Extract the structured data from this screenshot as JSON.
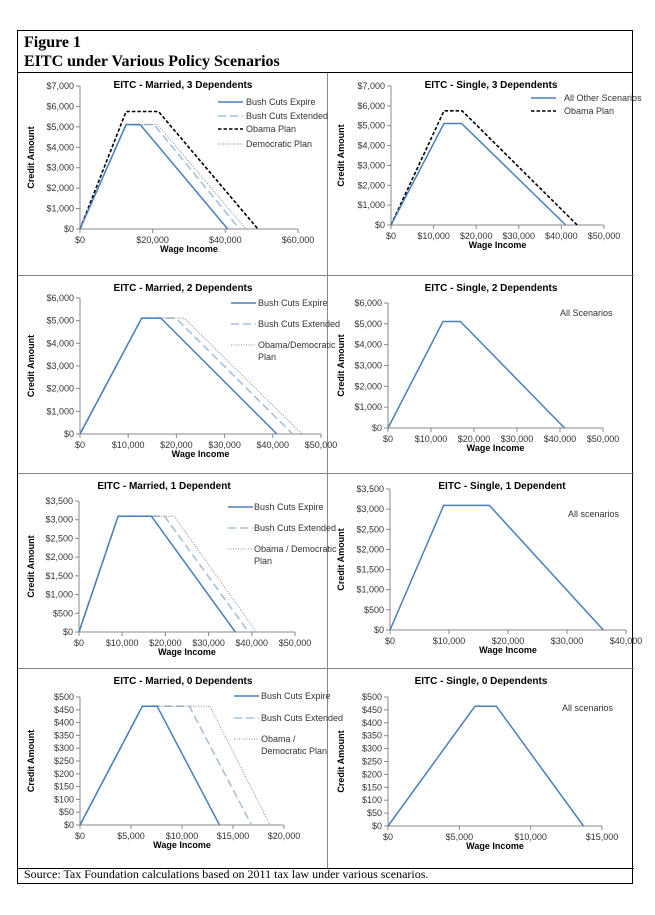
{
  "header": {
    "figure_label": "Figure 1",
    "title": "EITC under Various Policy Scenarios"
  },
  "source": "Source: Tax Foundation calculations based on 2011 tax law under various scenarios.",
  "colors": {
    "bush_expire": "#4a7ebb",
    "bush_extended": "#a7c0de",
    "obama": "#000000",
    "democratic": "#8c8c8c"
  },
  "chart_data": [
    {
      "type": "line",
      "title": "EITC - Married, 3 Dependents",
      "xlabel": "Wage Income",
      "ylabel": "Credit Amount",
      "xlim": [
        0,
        60000
      ],
      "ylim": [
        0,
        7000
      ],
      "xticks": [
        "$0",
        "$20,000",
        "$40,000",
        "$60,000"
      ],
      "yticks": [
        "$0",
        "$1,000",
        "$2,000",
        "$3,000",
        "$4,000",
        "$5,000",
        "$6,000",
        "$7,000"
      ],
      "series": [
        {
          "name": "Bush Cuts Expire",
          "legend_lines": [
            "Bush Cuts Expire"
          ],
          "style": "solid",
          "color": "#4a7ebb",
          "points": [
            [
              0,
              0
            ],
            [
              12700,
              5112
            ],
            [
              16560,
              5112
            ],
            [
              40660,
              0
            ]
          ]
        },
        {
          "name": "Bush Cuts Extended",
          "legend_lines": [
            "Bush Cuts Extended"
          ],
          "style": "dashed",
          "color": "#a7c0de",
          "points": [
            [
              0,
              0
            ],
            [
              12700,
              5112
            ],
            [
              20400,
              5112
            ],
            [
              43900,
              0
            ]
          ]
        },
        {
          "name": "Obama Plan",
          "legend_lines": [
            "Obama Plan"
          ],
          "style": "obama",
          "color": "#000000",
          "points": [
            [
              0,
              0
            ],
            [
              12700,
              5750
            ],
            [
              21600,
              5750
            ],
            [
              48950,
              0
            ]
          ]
        },
        {
          "name": "Democratic Plan",
          "legend_lines": [
            "Democratic Plan"
          ],
          "style": "dotted",
          "color": "#8c8c8c",
          "points": [
            [
              0,
              0
            ],
            [
              12700,
              5112
            ],
            [
              21350,
              5112
            ],
            [
              45700,
              0
            ]
          ]
        }
      ]
    },
    {
      "type": "line",
      "title": "EITC - Single, 3 Dependents",
      "xlabel": "Wage Income",
      "ylabel": "Credit Amount",
      "xlim": [
        0,
        50000
      ],
      "ylim": [
        0,
        7000
      ],
      "xticks": [
        "$0",
        "$10,000",
        "$20,000",
        "$30,000",
        "$40,000",
        "$50,000"
      ],
      "yticks": [
        "$0",
        "$1,000",
        "$2,000",
        "$3,000",
        "$4,000",
        "$5,000",
        "$6,000",
        "$7,000"
      ],
      "series": [
        {
          "name": "All Other Scenarios",
          "legend_lines": [
            "All Other Scenarios"
          ],
          "style": "solid",
          "color": "#4a7ebb",
          "points": [
            [
              0,
              0
            ],
            [
              12430,
              5112
            ],
            [
              16580,
              5112
            ],
            [
              41000,
              0
            ]
          ]
        },
        {
          "name": "Obama Plan",
          "legend_lines": [
            "Obama Plan"
          ],
          "style": "obama",
          "color": "#000000",
          "points": [
            [
              0,
              0
            ],
            [
              12430,
              5750
            ],
            [
              16700,
              5750
            ],
            [
              43700,
              0
            ]
          ]
        }
      ]
    },
    {
      "type": "line",
      "title": "EITC - Married, 2 Dependents",
      "xlabel": "Wage Income",
      "ylabel": "Credit Amount",
      "xlim": [
        0,
        50000
      ],
      "ylim": [
        0,
        6000
      ],
      "xticks": [
        "$0",
        "$10,000",
        "$20,000",
        "$30,000",
        "$40,000",
        "$50,000"
      ],
      "yticks": [
        "$0",
        "$1,000",
        "$2,000",
        "$3,000",
        "$4,000",
        "$5,000",
        "$6,000"
      ],
      "series": [
        {
          "name": "Bush Cuts Expire",
          "legend_lines": [
            "Bush Cuts Expire"
          ],
          "style": "solid",
          "color": "#4a7ebb",
          "points": [
            [
              0,
              0
            ],
            [
              12810,
              5112
            ],
            [
              16760,
              5112
            ],
            [
              40860,
              0
            ]
          ]
        },
        {
          "name": "Bush Cuts Extended",
          "legend_lines": [
            "Bush Cuts Extended"
          ],
          "style": "dashed",
          "color": "#a7c0de",
          "points": [
            [
              0,
              0
            ],
            [
              12810,
              5112
            ],
            [
              19870,
              5112
            ],
            [
              44100,
              0
            ]
          ]
        },
        {
          "name": "Obama/Democratic Plan",
          "legend_lines": [
            "Obama/Democratic",
            "Plan"
          ],
          "style": "dotted",
          "color": "#8c8c8c",
          "points": [
            [
              0,
              0
            ],
            [
              12810,
              5112
            ],
            [
              21600,
              5112
            ],
            [
              46050,
              0
            ]
          ]
        }
      ]
    },
    {
      "type": "line",
      "title": "EITC - Single, 2 Dependents",
      "xlabel": "Wage Income",
      "ylabel": "Credit Amount",
      "xlim": [
        0,
        50000
      ],
      "ylim": [
        0,
        6000
      ],
      "xticks": [
        "$0",
        "$10,000",
        "$20,000",
        "$30,000",
        "$40,000",
        "$50,000"
      ],
      "yticks": [
        "$0",
        "$1,000",
        "$2,000",
        "$3,000",
        "$4,000",
        "$5,000",
        "$6,000"
      ],
      "annotation": "All Scenarios",
      "series": [
        {
          "name": "All Scenarios",
          "style": "solid",
          "color": "#4a7ebb",
          "points": [
            [
              0,
              0
            ],
            [
              12800,
              5112
            ],
            [
              16840,
              5112
            ],
            [
              41050,
              0
            ]
          ]
        }
      ]
    },
    {
      "type": "line",
      "title": "EITC - Married, 1 Dependent",
      "xlabel": "Wage Income",
      "ylabel": "Credit Amount",
      "xlim": [
        0,
        50000
      ],
      "ylim": [
        0,
        3500
      ],
      "xticks": [
        "$0",
        "$10,000",
        "$20,000",
        "$30,000",
        "$40,000",
        "$50,000"
      ],
      "yticks": [
        "$0",
        "$500",
        "$1,000",
        "$1,500",
        "$2,000",
        "$2,500",
        "$3,000",
        "$3,500"
      ],
      "series": [
        {
          "name": "Bush Cuts Expire",
          "legend_lines": [
            "Bush Cuts Expire"
          ],
          "style": "solid",
          "color": "#4a7ebb",
          "points": [
            [
              0,
              0
            ],
            [
              9040,
              3094
            ],
            [
              16770,
              3094
            ],
            [
              36180,
              0
            ]
          ]
        },
        {
          "name": "Bush Cuts Extended",
          "legend_lines": [
            "Bush Cuts Extended"
          ],
          "style": "dashed",
          "color": "#a7c0de",
          "points": [
            [
              0,
              0
            ],
            [
              9040,
              3094
            ],
            [
              19800,
              3094
            ],
            [
              39270,
              0
            ]
          ]
        },
        {
          "name": "Obama / Democratic Plan",
          "legend_lines": [
            "Obama / Democratic",
            "Plan"
          ],
          "style": "dotted",
          "color": "#8c8c8c",
          "points": [
            [
              0,
              0
            ],
            [
              9040,
              3094
            ],
            [
              22030,
              3094
            ],
            [
              41050,
              0
            ]
          ]
        }
      ]
    },
    {
      "type": "line",
      "title": "EITC - Single, 1 Dependent",
      "xlabel": "Wage Income",
      "ylabel": "Credit Amount",
      "xlim": [
        0,
        40000
      ],
      "ylim": [
        0,
        3500
      ],
      "xticks": [
        "$0",
        "$10,000",
        "$20,000",
        "$30,000",
        "$40,000"
      ],
      "yticks": [
        "$0",
        "$500",
        "$1,000",
        "$1,500",
        "$2,000",
        "$2,500",
        "$3,000",
        "$3,500"
      ],
      "annotation": "All scenarios",
      "series": [
        {
          "name": "All scenarios",
          "style": "solid",
          "color": "#4a7ebb",
          "points": [
            [
              0,
              0
            ],
            [
              9100,
              3094
            ],
            [
              16840,
              3094
            ],
            [
              36160,
              0
            ]
          ]
        }
      ]
    },
    {
      "type": "line",
      "title": "EITC - Married, 0 Dependents",
      "xlabel": "Wage Income",
      "ylabel": "Credit Amount",
      "xlim": [
        0,
        20000
      ],
      "ylim": [
        0,
        500
      ],
      "xticks": [
        "$0",
        "$5,000",
        "$10,000",
        "$15,000",
        "$20,000"
      ],
      "yticks": [
        "$0",
        "$50",
        "$100",
        "$150",
        "$200",
        "$250",
        "$300",
        "$350",
        "$400",
        "$450",
        "$500"
      ],
      "series": [
        {
          "name": "Bush Cuts Expire",
          "legend_lines": [
            "Bush Cuts Expire"
          ],
          "style": "solid",
          "color": "#4a7ebb",
          "points": [
            [
              0,
              0
            ],
            [
              6120,
              464
            ],
            [
              7560,
              464
            ],
            [
              13680,
              0
            ]
          ]
        },
        {
          "name": "Bush Cuts Extended",
          "legend_lines": [
            "Bush Cuts Extended"
          ],
          "style": "dashed",
          "color": "#a7c0de",
          "points": [
            [
              0,
              0
            ],
            [
              6120,
              464
            ],
            [
              10720,
              464
            ],
            [
              16810,
              0
            ]
          ]
        },
        {
          "name": "Obama / Democratic Plan",
          "legend_lines": [
            "Obama /",
            "Democratic Plan"
          ],
          "style": "dotted",
          "color": "#8c8c8c",
          "points": [
            [
              0,
              0
            ],
            [
              6120,
              464
            ],
            [
              12740,
              464
            ],
            [
              18630,
              0
            ]
          ]
        }
      ]
    },
    {
      "type": "line",
      "title": "EITC - Single, 0 Dependents",
      "xlabel": "Wage Income",
      "ylabel": "Credit Amount",
      "xlim": [
        0,
        15000
      ],
      "ylim": [
        0,
        500
      ],
      "xticks": [
        "$0",
        "$5,000",
        "$10,000",
        "$15,000"
      ],
      "yticks": [
        "$0",
        "$50",
        "$100",
        "$150",
        "$200",
        "$250",
        "$300",
        "$350",
        "$400",
        "$450",
        "$500"
      ],
      "annotation": "All scenarios",
      "series": [
        {
          "name": "All scenarios",
          "style": "solid",
          "color": "#4a7ebb",
          "points": [
            [
              0,
              0
            ],
            [
              6090,
              464
            ],
            [
              7600,
              464
            ],
            [
              13700,
              0
            ]
          ]
        }
      ]
    }
  ]
}
